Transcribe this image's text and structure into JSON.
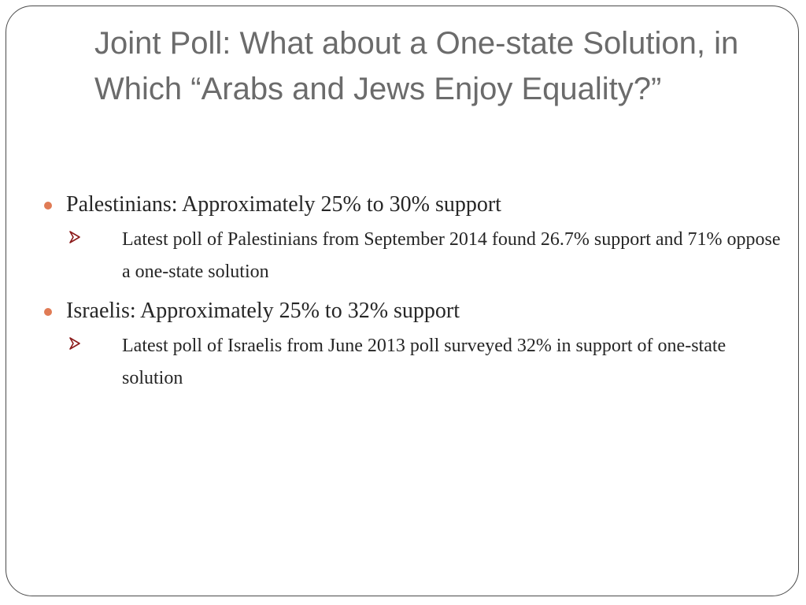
{
  "slide": {
    "title": "Joint Poll: What about a One-state Solution, in Which “Arabs and Jews Enjoy Equality?”",
    "bullets": [
      {
        "text": "Palestinians: Approximately 25% to 30% support",
        "sub": "Latest poll of Palestinians from September 2014 found 26.7% support and 71% oppose a one-state solution"
      },
      {
        "text": "Israelis: Approximately 25% to 32% support",
        "sub": "Latest poll of Israelis from June 2013 poll surveyed 32% in support of one-state solution"
      }
    ]
  },
  "colors": {
    "bullet_dot": "#e07b55",
    "arrow": "#8b1a1a",
    "title_text": "#6b6b6b",
    "body_text": "#262626"
  },
  "icons": {
    "bullet": "circle-bullet-icon",
    "sub_bullet": "arrowhead-bullet-icon"
  }
}
